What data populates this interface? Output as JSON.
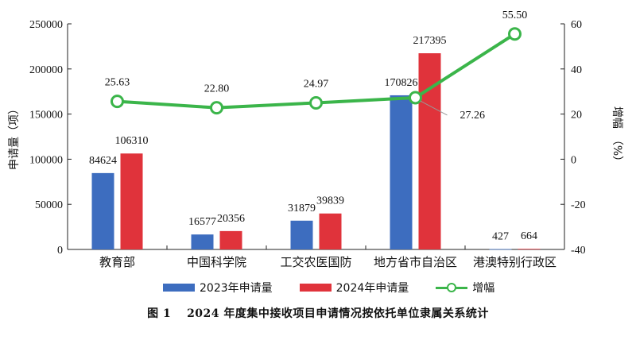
{
  "chart_data": {
    "type": "bar+line",
    "categories": [
      "教育部",
      "中国科学院",
      "工交农医国防",
      "地方省市自治区",
      "港澳特别行政区"
    ],
    "series": [
      {
        "name": "2023年申请量",
        "type": "bar",
        "axis": "left",
        "color": "#3d6dbf",
        "values": [
          84624,
          16577,
          31879,
          170826,
          427
        ]
      },
      {
        "name": "2024年申请量",
        "type": "bar",
        "axis": "left",
        "color": "#e0333b",
        "values": [
          106310,
          20356,
          39839,
          217395,
          664
        ]
      },
      {
        "name": "增幅",
        "type": "line",
        "axis": "right",
        "color": "#3bb54a",
        "values": [
          25.63,
          22.8,
          24.97,
          27.26,
          55.5
        ]
      }
    ],
    "data_labels": {
      "2023": [
        "84624",
        "16577",
        "31879",
        "170826",
        "427"
      ],
      "2024": [
        "106310",
        "20356",
        "39839",
        "217395",
        "664"
      ],
      "growth": [
        "25.63",
        "22.80",
        "24.97",
        "27.26",
        "55.50"
      ]
    },
    "ylabel_left": "申请量（项）",
    "ylabel_right": "增幅　（%）",
    "ylim_left": [
      0,
      250000
    ],
    "yticks_left": [
      "0",
      "50000",
      "100000",
      "150000",
      "200000",
      "250000"
    ],
    "ylim_right": [
      -40,
      60
    ],
    "yticks_right": [
      "-40",
      "-20",
      "0",
      "20",
      "40",
      "60"
    ],
    "grid": false,
    "legend_position": "bottom"
  },
  "caption": "图 1　 2024 年度集中接收项目申请情况按依托单位隶属关系统计"
}
